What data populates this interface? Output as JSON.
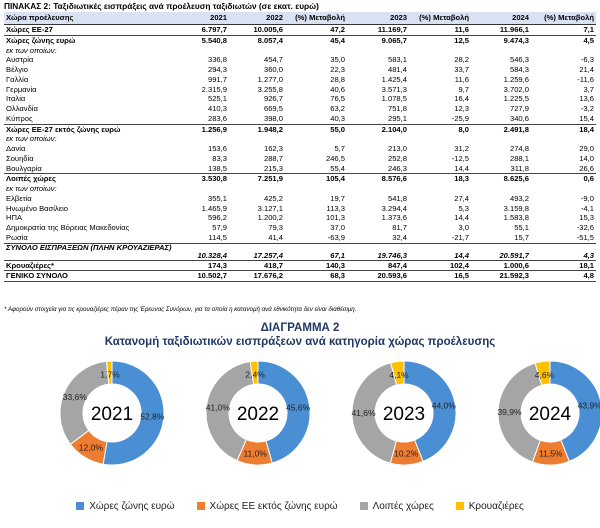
{
  "table": {
    "title": "ΠΙΝΑΚΑΣ 2: Ταξιδιωτικές εισπράξεις ανά προέλευση ταξιδιωτών (σε εκατ. ευρώ)",
    "headers": [
      "Χώρα προέλευσης",
      "2021",
      "2022",
      "(%) Μεταβολή",
      "2023",
      "(%) Μεταβολή",
      "2024",
      "(%) Μεταβολή"
    ],
    "rows": [
      [
        "Χώρες ΕΕ-27",
        "6.797,7",
        "10.005,6",
        "47,2",
        "11.169,7",
        "11,6",
        "11.966,1",
        "7,1"
      ],
      [
        "Χώρες ζώνης ευρώ",
        "5.540,8",
        "8.057,4",
        "45,4",
        "9.065,7",
        "12,5",
        "9.474,3",
        "4,5"
      ],
      [
        "εκ των οποίων:",
        "",
        "",
        "",
        "",
        "",
        "",
        ""
      ],
      [
        "Αυστρία",
        "336,8",
        "454,7",
        "35,0",
        "583,1",
        "28,2",
        "546,3",
        "-6,3"
      ],
      [
        "Βέλγιο",
        "294,3",
        "360,0",
        "22,3",
        "481,4",
        "33,7",
        "584,3",
        "21,4"
      ],
      [
        "Γαλλία",
        "991,7",
        "1.277,0",
        "28,8",
        "1.425,4",
        "11,6",
        "1.259,6",
        "-11,6"
      ],
      [
        "Γερμανία",
        "2.315,9",
        "3.255,8",
        "40,6",
        "3.571,3",
        "9,7",
        "3.702,0",
        "3,7"
      ],
      [
        "Ιταλία",
        "525,1",
        "926,7",
        "76,5",
        "1.078,5",
        "16,4",
        "1.225,5",
        "13,6"
      ],
      [
        "Ολλανδία",
        "410,3",
        "669,5",
        "63,2",
        "751,8",
        "12,3",
        "727,9",
        "-3,2"
      ],
      [
        "Κύπρος",
        "283,6",
        "398,0",
        "40,3",
        "295,1",
        "-25,9",
        "340,6",
        "15,4"
      ],
      [
        "Χώρες ΕΕ-27 εκτός ζώνης ευρώ",
        "1.256,9",
        "1.948,2",
        "55,0",
        "2.104,0",
        "8,0",
        "2.491,8",
        "18,4"
      ],
      [
        "εκ των οποίων:",
        "",
        "",
        "",
        "",
        "",
        "",
        ""
      ],
      [
        "Δανία",
        "153,6",
        "162,3",
        "5,7",
        "213,0",
        "31,2",
        "274,8",
        "29,0"
      ],
      [
        "Σουηδία",
        "83,3",
        "288,7",
        "246,5",
        "252,8",
        "-12,5",
        "288,1",
        "14,0"
      ],
      [
        "Βουλγαρία",
        "138,5",
        "215,3",
        "55,4",
        "246,3",
        "14,4",
        "311,8",
        "26,6"
      ],
      [
        "Λοιπές χώρες",
        "3.530,8",
        "7.251,9",
        "105,4",
        "8.576,6",
        "18,3",
        "8.625,6",
        "0,6"
      ],
      [
        "εκ των οποίων:",
        "",
        "",
        "",
        "",
        "",
        "",
        ""
      ],
      [
        "Ελβετία",
        "355,1",
        "425,2",
        "19,7",
        "541,8",
        "27,4",
        "493,2",
        "-9,0"
      ],
      [
        "Ηνωμένο Βασίλειο",
        "1.465,9",
        "3.127,1",
        "113,3",
        "3.294,4",
        "5,3",
        "3.159,8",
        "-4,1"
      ],
      [
        "ΗΠΑ",
        "596,2",
        "1.200,2",
        "101,3",
        "1.373,6",
        "14,4",
        "1.583,8",
        "15,3"
      ],
      [
        "Δημοκρατία της Βόρειας Μακεδονίας",
        "57,9",
        "79,3",
        "37,0",
        "81,7",
        "3,0",
        "55,1",
        "-32,6"
      ],
      [
        "Ρωσία",
        "114,5",
        "41,4",
        "-63,9",
        "32,4",
        "-21,7",
        "15,7",
        "-51,5"
      ],
      [
        "ΣΥΝΟΛΟ ΕΙΣΠΡΑΞΕΩΝ (ΠΛΗΝ ΚΡΟΥΑΖΙΕΡΑΣ)",
        "10.328,4",
        "17.257,4",
        "67,1",
        "19.746,3",
        "14,4",
        "20.591,7",
        "4,3"
      ],
      [
        "Κρουαζιέρες*",
        "174,3",
        "418,7",
        "140,3",
        "847,4",
        "102,4",
        "1.000,6",
        "18,1"
      ],
      [
        "ΓΕΝΙΚΟ ΣΥΝΟΛΟ",
        "10.502,7",
        "17.676,2",
        "68,3",
        "20.593,6",
        "16,5",
        "21.592,3",
        "4,8"
      ]
    ],
    "note": "* Αφορούν στοιχεία για τις κρουαζιέρες πέραν της Έρευνας Συνόρων, για τα οποία η κατανομή ανά εθνικότητα δεν είναι διαθέσιμη."
  },
  "diagram": {
    "title": "ΔΙΑΓΡΑΜΜΑ 2",
    "subtitle": "Κατανομή ταξιδιωτικών εισπράξεων ανά κατηγορία χώρας προέλευσης"
  },
  "chart_data": [
    {
      "type": "pie",
      "title": "2021",
      "categories": [
        "Χώρες ζώνης ευρώ",
        "Χώρες ΕΕ εκτός ζώνης ευρώ",
        "Λοιπές χώρες",
        "Κρουαζιέρες"
      ],
      "values": [
        52.8,
        12.0,
        33.6,
        1.7
      ],
      "labels": [
        "52,8%",
        "12,0%",
        "33,6%",
        "1,7%"
      ]
    },
    {
      "type": "pie",
      "title": "2022",
      "categories": [
        "Χώρες ζώνης ευρώ",
        "Χώρες ΕΕ εκτός ζώνης ευρώ",
        "Λοιπές χώρες",
        "Κρουαζιέρες"
      ],
      "values": [
        45.6,
        11.0,
        41.0,
        2.4
      ],
      "labels": [
        "45,6%",
        "11,0%",
        "41,0%",
        "2,4%"
      ]
    },
    {
      "type": "pie",
      "title": "2023",
      "categories": [
        "Χώρες ζώνης ευρώ",
        "Χώρες ΕΕ εκτός ζώνης ευρώ",
        "Λοιπές χώρες",
        "Κρουαζιέρες"
      ],
      "values": [
        44.0,
        10.2,
        41.6,
        4.1
      ],
      "labels": [
        "44,0%",
        "10,2%",
        "41,6%",
        "4,1%"
      ]
    },
    {
      "type": "pie",
      "title": "2024",
      "categories": [
        "Χώρες ζώνης ευρώ",
        "Χώρες ΕΕ εκτός ζώνης ευρώ",
        "Λοιπές χώρες",
        "Κρουαζιέρες"
      ],
      "values": [
        43.9,
        11.5,
        39.9,
        4.6
      ],
      "labels": [
        "43,9%",
        "11,5%",
        "39,9%",
        "4,6%"
      ]
    }
  ],
  "legend": [
    {
      "label": "Χώρες ζώνης ευρώ",
      "color": "#4a8fd4"
    },
    {
      "label": "Χώρες ΕΕ εκτός ζώνης ευρώ",
      "color": "#ed7d31"
    },
    {
      "label": "Λοιπές χώρες",
      "color": "#a5a5a5"
    },
    {
      "label": "Κρουαζιέρες",
      "color": "#ffc000"
    }
  ]
}
